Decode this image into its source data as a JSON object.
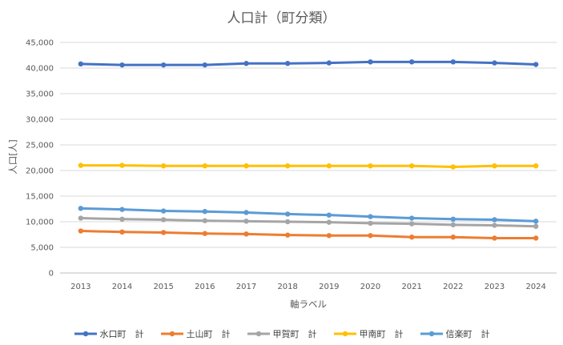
{
  "chart_data": {
    "type": "line",
    "title": "人口計（町分類）",
    "xlabel": "軸ラベル",
    "ylabel": "人口[人]",
    "ylim": [
      0,
      45000
    ],
    "yticks": [
      "0",
      "5,000",
      "10,000",
      "15,000",
      "20,000",
      "25,000",
      "30,000",
      "35,000",
      "40,000",
      "45,000"
    ],
    "ytick_values": [
      0,
      5000,
      10000,
      15000,
      20000,
      25000,
      30000,
      35000,
      40000,
      45000
    ],
    "grid": true,
    "legend_position": "bottom",
    "categories": [
      "2013",
      "2014",
      "2015",
      "2016",
      "2017",
      "2018",
      "2019",
      "2020",
      "2021",
      "2022",
      "2023",
      "2024"
    ],
    "series": [
      {
        "name": "水口町　計",
        "color": "#4472c4",
        "values": [
          40800,
          40600,
          40600,
          40600,
          40900,
          40900,
          41000,
          41200,
          41200,
          41200,
          41000,
          40700
        ]
      },
      {
        "name": "土山町　計",
        "color": "#ed7d31",
        "values": [
          8200,
          8000,
          7900,
          7700,
          7600,
          7400,
          7300,
          7300,
          7000,
          7000,
          6800,
          6800
        ]
      },
      {
        "name": "甲賀町　計",
        "color": "#a5a5a5",
        "values": [
          10700,
          10500,
          10400,
          10200,
          10100,
          10000,
          9900,
          9700,
          9600,
          9400,
          9300,
          9100
        ]
      },
      {
        "name": "甲南町　計",
        "color": "#ffc000",
        "values": [
          21000,
          21000,
          20900,
          20900,
          20900,
          20900,
          20900,
          20900,
          20900,
          20700,
          20900,
          20900
        ]
      },
      {
        "name": "信楽町　計",
        "color": "#5b9bd5",
        "values": [
          12600,
          12400,
          12100,
          12000,
          11800,
          11500,
          11300,
          11000,
          10700,
          10500,
          10400,
          10100
        ]
      }
    ]
  }
}
